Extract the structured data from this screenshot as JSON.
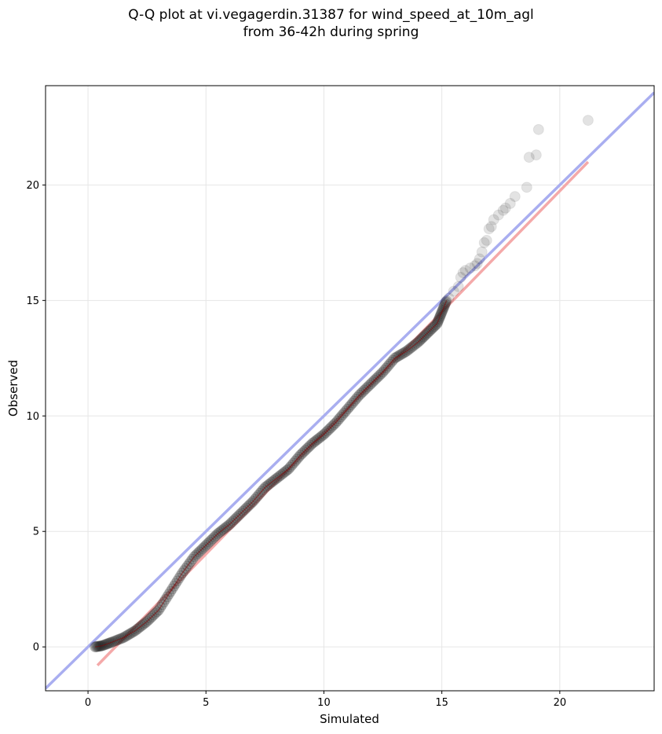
{
  "chart_data": {
    "type": "scatter",
    "title_line1": "Q-Q plot at vi.vegagerdin.31387 for wind_speed_at_10m_agl",
    "title_line2": "from 36-42h during spring",
    "xlabel": "Simulated",
    "ylabel": "Observed",
    "xlim": [
      -1.8,
      24
    ],
    "ylim": [
      -1.9,
      24.3
    ],
    "xticks": [
      0,
      5,
      10,
      15,
      20
    ],
    "yticks": [
      0,
      5,
      10,
      15,
      20
    ],
    "grid": true,
    "colors": {
      "points": "#1a1a1a",
      "identity_line": "#a9aef0",
      "fit_line": "#f4a9a9",
      "dense_trace": "#8b0000"
    },
    "identity_line": {
      "x": [
        -1.8,
        24
      ],
      "y": [
        -1.8,
        24
      ]
    },
    "fit_line": {
      "x": [
        0.4,
        21.2
      ],
      "y": [
        -0.8,
        21.0
      ]
    },
    "qq_curve": {
      "x": [
        0.3,
        0.6,
        1.0,
        1.5,
        2.0,
        2.5,
        3.0,
        3.5,
        4.0,
        4.5,
        5.0,
        5.5,
        6.0,
        6.5,
        7.0,
        7.5,
        8.0,
        8.5,
        9.0,
        9.5,
        10.0,
        10.5,
        11.0,
        11.5,
        12.0,
        12.5,
        13.0,
        13.5,
        14.0,
        14.4,
        14.8,
        15.0,
        15.2
      ],
      "y": [
        0.0,
        0.05,
        0.2,
        0.4,
        0.7,
        1.1,
        1.6,
        2.4,
        3.2,
        3.9,
        4.4,
        4.9,
        5.3,
        5.8,
        6.3,
        6.9,
        7.3,
        7.7,
        8.3,
        8.8,
        9.2,
        9.7,
        10.3,
        10.9,
        11.4,
        11.9,
        12.5,
        12.8,
        13.2,
        13.6,
        14.0,
        14.5,
        15.0
      ]
    },
    "tail_points": {
      "x": [
        15.3,
        15.5,
        15.7,
        15.8,
        15.9,
        16.0,
        16.2,
        16.4,
        16.5,
        16.6,
        16.7,
        16.8,
        16.9,
        17.0,
        17.1,
        17.2,
        17.4,
        17.6,
        17.7,
        17.9,
        18.1,
        18.6,
        18.7,
        19.0,
        19.1,
        21.2
      ],
      "y": [
        15.1,
        15.4,
        15.6,
        16.0,
        16.2,
        16.3,
        16.4,
        16.5,
        16.6,
        16.8,
        17.1,
        17.5,
        17.6,
        18.1,
        18.2,
        18.5,
        18.7,
        18.9,
        19.0,
        19.2,
        19.5,
        19.9,
        21.2,
        21.3,
        22.4,
        22.8
      ]
    }
  }
}
